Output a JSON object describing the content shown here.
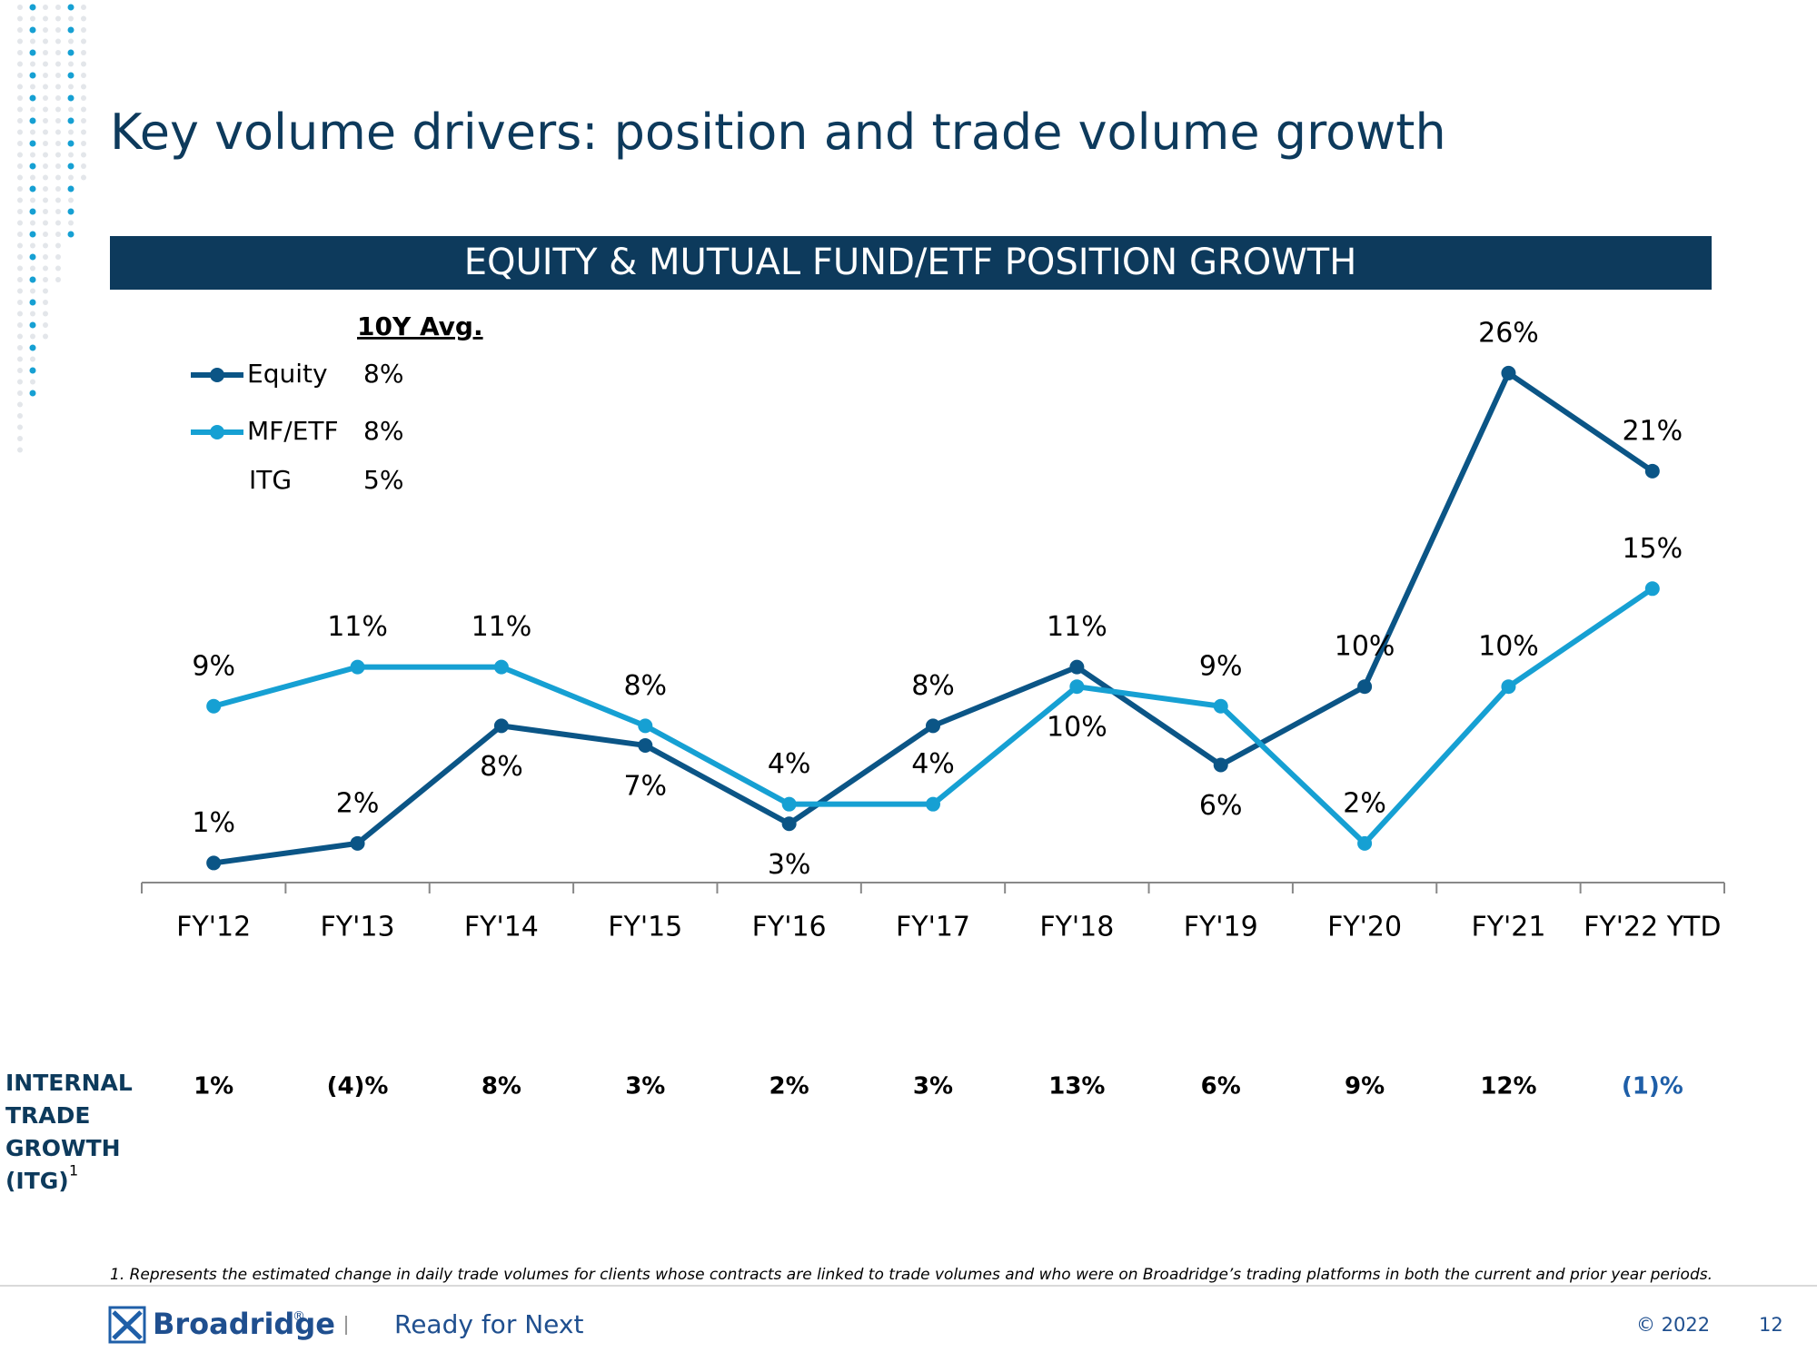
{
  "title": "Key volume drivers: position and trade volume growth",
  "chart_data": {
    "type": "line",
    "title": "EQUITY & MUTUAL FUND/ETF POSITION GROWTH",
    "legend_title": "10Y Avg.",
    "categories": [
      "FY'12",
      "FY'13",
      "FY'14",
      "FY'15",
      "FY'16",
      "FY'17",
      "FY'18",
      "FY'19",
      "FY'20",
      "FY'21",
      "FY'22 YTD"
    ],
    "series": [
      {
        "name": "Equity",
        "color": "#0b5586",
        "average": "8%",
        "values": [
          1,
          2,
          8,
          7,
          3,
          8,
          11,
          6,
          10,
          26,
          21
        ],
        "value_labels": [
          "1%",
          "2%",
          "8%",
          "7%",
          "3%",
          "8%",
          "11%",
          "6%",
          "10%",
          "26%",
          "21%"
        ]
      },
      {
        "name": "MF/ETF",
        "color": "#16a0d3",
        "average": "8%",
        "values": [
          9,
          11,
          11,
          8,
          4,
          4,
          10,
          9,
          2,
          10,
          15
        ],
        "value_labels": [
          "9%",
          "11%",
          "11%",
          "8%",
          "4%",
          "4%",
          "10%",
          "9%",
          "2%",
          "10%",
          "15%"
        ]
      }
    ],
    "ylim": [
      0,
      30
    ]
  },
  "itg": {
    "label_lines": [
      "INTERNAL",
      "TRADE",
      "GROWTH",
      "(ITG)"
    ],
    "footnote_mark": "1",
    "legend_name": "ITG",
    "average": "5%",
    "values": [
      "1%",
      "(4)%",
      "8%",
      "3%",
      "2%",
      "3%",
      "13%",
      "6%",
      "9%",
      "12%",
      "(1)%"
    ]
  },
  "footnote": "1. Represents the estimated change in daily trade volumes for clients whose contracts are linked to trade volumes and who were on Broadridge’s trading platforms in both the current and prior year periods.",
  "footer": {
    "brand": "Broadridge",
    "brand_mark": "®",
    "tagline": "Ready for Next",
    "copyright": "© 2022",
    "page": "12"
  }
}
